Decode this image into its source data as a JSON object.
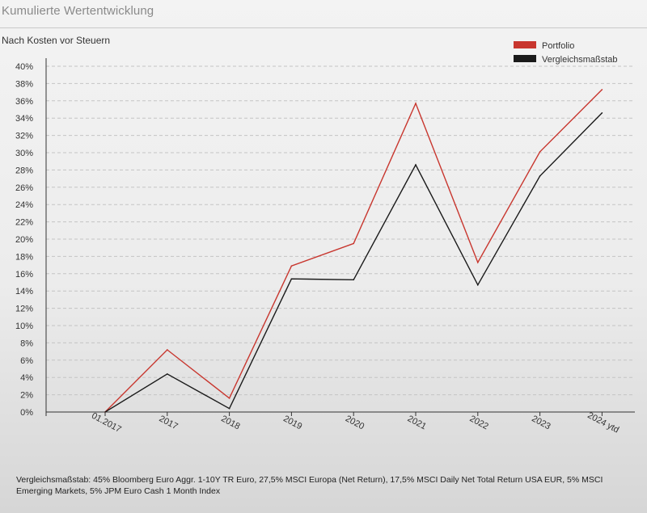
{
  "header": {
    "title": "Kumulierte Wertentwicklung",
    "subtitle": "Nach Kosten vor Steuern"
  },
  "footnote": "Vergleichsmaßstab: 45% Bloomberg Euro Aggr. 1-10Y TR Euro, 27,5% MSCI Europa (Net Return), 17,5% MSCI Daily Net Total Return USA EUR, 5% MSCI Emerging Markets, 5% JPM Euro Cash 1 Month Index",
  "colors": {
    "portfolio": "#c8362e",
    "benchmark": "#1a1a1a",
    "grid": "#c4c4c4",
    "axis": "#333333"
  },
  "chart_data": {
    "type": "line",
    "title": "",
    "xlabel": "",
    "ylabel": "",
    "ylim": [
      0,
      40
    ],
    "y_ticks": [
      "0%",
      "2%",
      "4%",
      "6%",
      "8%",
      "10%",
      "12%",
      "14%",
      "16%",
      "18%",
      "20%",
      "22%",
      "24%",
      "26%",
      "28%",
      "30%",
      "32%",
      "34%",
      "36%",
      "38%",
      "40%"
    ],
    "categories": [
      "01.2017",
      "2017",
      "2018",
      "2019",
      "2020",
      "2021",
      "2022",
      "2023",
      "2024 ytd"
    ],
    "grid": "horizontal dashed",
    "legend_position": "top-right",
    "series": [
      {
        "name": "Portfolio",
        "color": "#c8362e",
        "values": [
          0,
          7.2,
          1.6,
          16.9,
          19.5,
          35.7,
          17.3,
          30.1,
          37.3
        ]
      },
      {
        "name": "Vergleichsmaßstab",
        "color": "#1a1a1a",
        "values": [
          0,
          4.4,
          0.4,
          15.4,
          15.3,
          28.6,
          14.7,
          27.3,
          34.6
        ]
      }
    ]
  }
}
